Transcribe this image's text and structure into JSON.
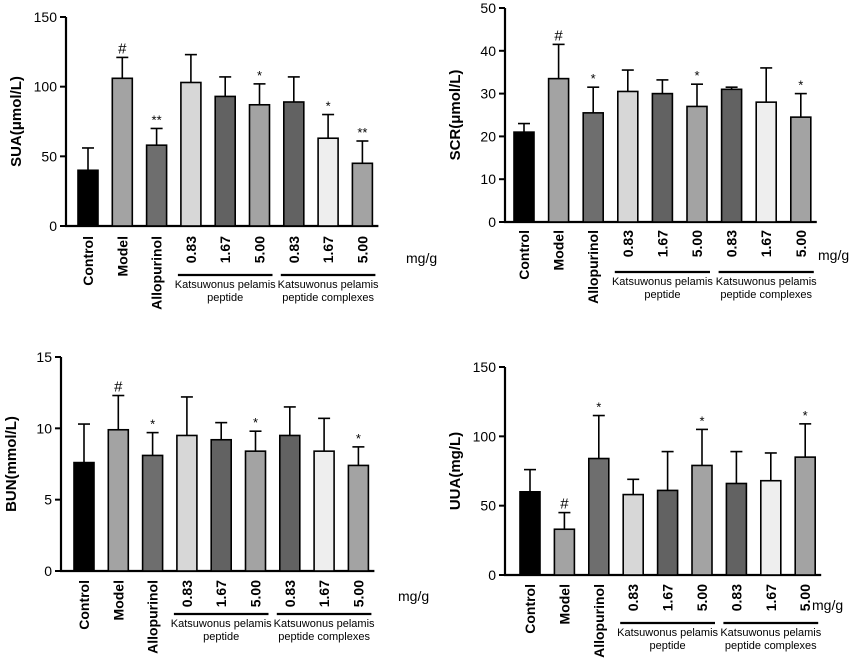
{
  "colors": {
    "Control": "#000000",
    "Model": "#a3a3a3",
    "Allopurinol": "#6e6e6e",
    "peptide_0.83": "#d7d7d7",
    "peptide_1.67": "#626262",
    "peptide_5.00": "#a3a3a3",
    "complex_0.83": "#626262",
    "complex_1.67": "#eeeeee",
    "complex_5.00": "#a3a3a3"
  },
  "unit_label": "mg/g",
  "groups": [
    {
      "label": "Katsuwonus pelamis peptide",
      "start": 3,
      "end": 5
    },
    {
      "label": "Katsuwonus pelamis peptide complexes",
      "start": 6,
      "end": 8
    }
  ],
  "chart_data": [
    {
      "type": "bar",
      "ylabel": "SUA(μmol/L)",
      "ylim": [
        0,
        150
      ],
      "yticks": [
        0,
        50,
        100,
        150
      ],
      "categories": [
        "Control",
        "Model",
        "Allopurinol",
        "0.83",
        "1.67",
        "5.00",
        "0.83",
        "1.67",
        "5.00"
      ],
      "values": [
        40,
        106,
        58,
        103,
        93,
        87,
        89,
        63,
        45
      ],
      "errors": [
        16,
        15,
        12,
        20,
        14,
        15,
        18,
        17,
        16
      ],
      "marks": [
        "",
        "#",
        "**",
        "",
        "",
        "*",
        "",
        "*",
        "**"
      ]
    },
    {
      "type": "bar",
      "ylabel": "SCR(μmol/L)",
      "ylim": [
        0,
        50
      ],
      "yticks": [
        0,
        10,
        20,
        30,
        40,
        50
      ],
      "categories": [
        "Control",
        "Model",
        "Allopurinol",
        "0.83",
        "1.67",
        "5.00",
        "0.83",
        "1.67",
        "5.00"
      ],
      "values": [
        21,
        33.5,
        25.5,
        30.5,
        30,
        27,
        31,
        28,
        24.5
      ],
      "errors": [
        2,
        8,
        6,
        5,
        3.2,
        5.2,
        0.5,
        8,
        5.5
      ],
      "marks": [
        "",
        "#",
        "*",
        "",
        "",
        "*",
        "",
        "",
        "*"
      ]
    },
    {
      "type": "bar",
      "ylabel": "BUN(mmol/L)",
      "ylim": [
        0,
        15
      ],
      "yticks": [
        0,
        5,
        10,
        15
      ],
      "categories": [
        "Control",
        "Model",
        "Allopurinol",
        "0.83",
        "1.67",
        "5.00",
        "0.83",
        "1.67",
        "5.00"
      ],
      "values": [
        7.6,
        9.9,
        8.1,
        9.5,
        9.2,
        8.4,
        9.5,
        8.4,
        7.4
      ],
      "errors": [
        2.7,
        2.4,
        1.6,
        2.7,
        1.2,
        1.4,
        2.0,
        2.3,
        1.3
      ],
      "marks": [
        "",
        "#",
        "*",
        "",
        "",
        "*",
        "",
        "",
        "*"
      ]
    },
    {
      "type": "bar",
      "ylabel": "UUA(mg/L)",
      "ylim": [
        0,
        150
      ],
      "yticks": [
        0,
        50,
        100,
        150
      ],
      "categories": [
        "Control",
        "Model",
        "Allopurinol",
        "0.83",
        "1.67",
        "5.00",
        "0.83",
        "1.67",
        "5.00"
      ],
      "values": [
        60,
        33,
        84,
        58,
        61,
        79,
        66,
        68,
        85
      ],
      "errors": [
        16,
        12,
        31,
        11,
        28,
        26,
        23,
        20,
        24
      ],
      "marks": [
        "",
        "#",
        "*",
        "",
        "",
        "*",
        "",
        "",
        "*"
      ]
    }
  ]
}
